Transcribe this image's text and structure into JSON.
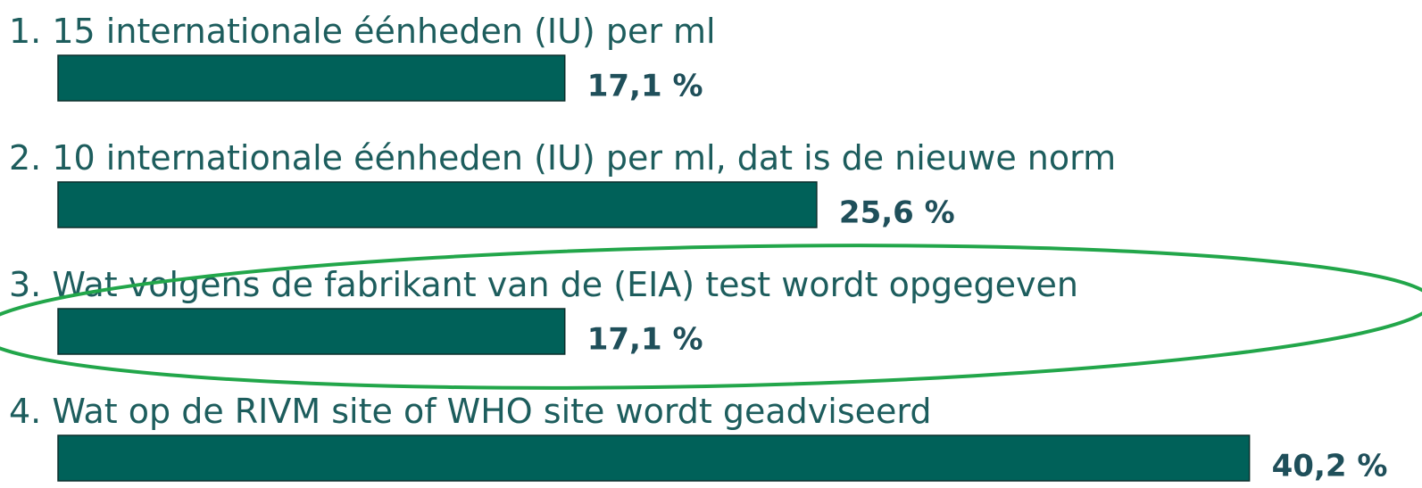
{
  "chart_data": {
    "type": "bar",
    "categories": [
      "1. 15 internationale éénheden (IU) per ml",
      "2. 10 internationale éénheden (IU) per ml, dat is de nieuwe norm",
      "3. Wat volgens de fabrikant van de (EIA) test wordt opgegeven",
      "4. Wat op de RIVM site of WHO site wordt geadviseerd"
    ],
    "values": [
      17.1,
      25.6,
      17.1,
      40.2
    ],
    "value_labels": [
      "17,1 %",
      "25,6 %",
      "17,1 %",
      "40,2 %"
    ],
    "color": "#006159"
  }
}
